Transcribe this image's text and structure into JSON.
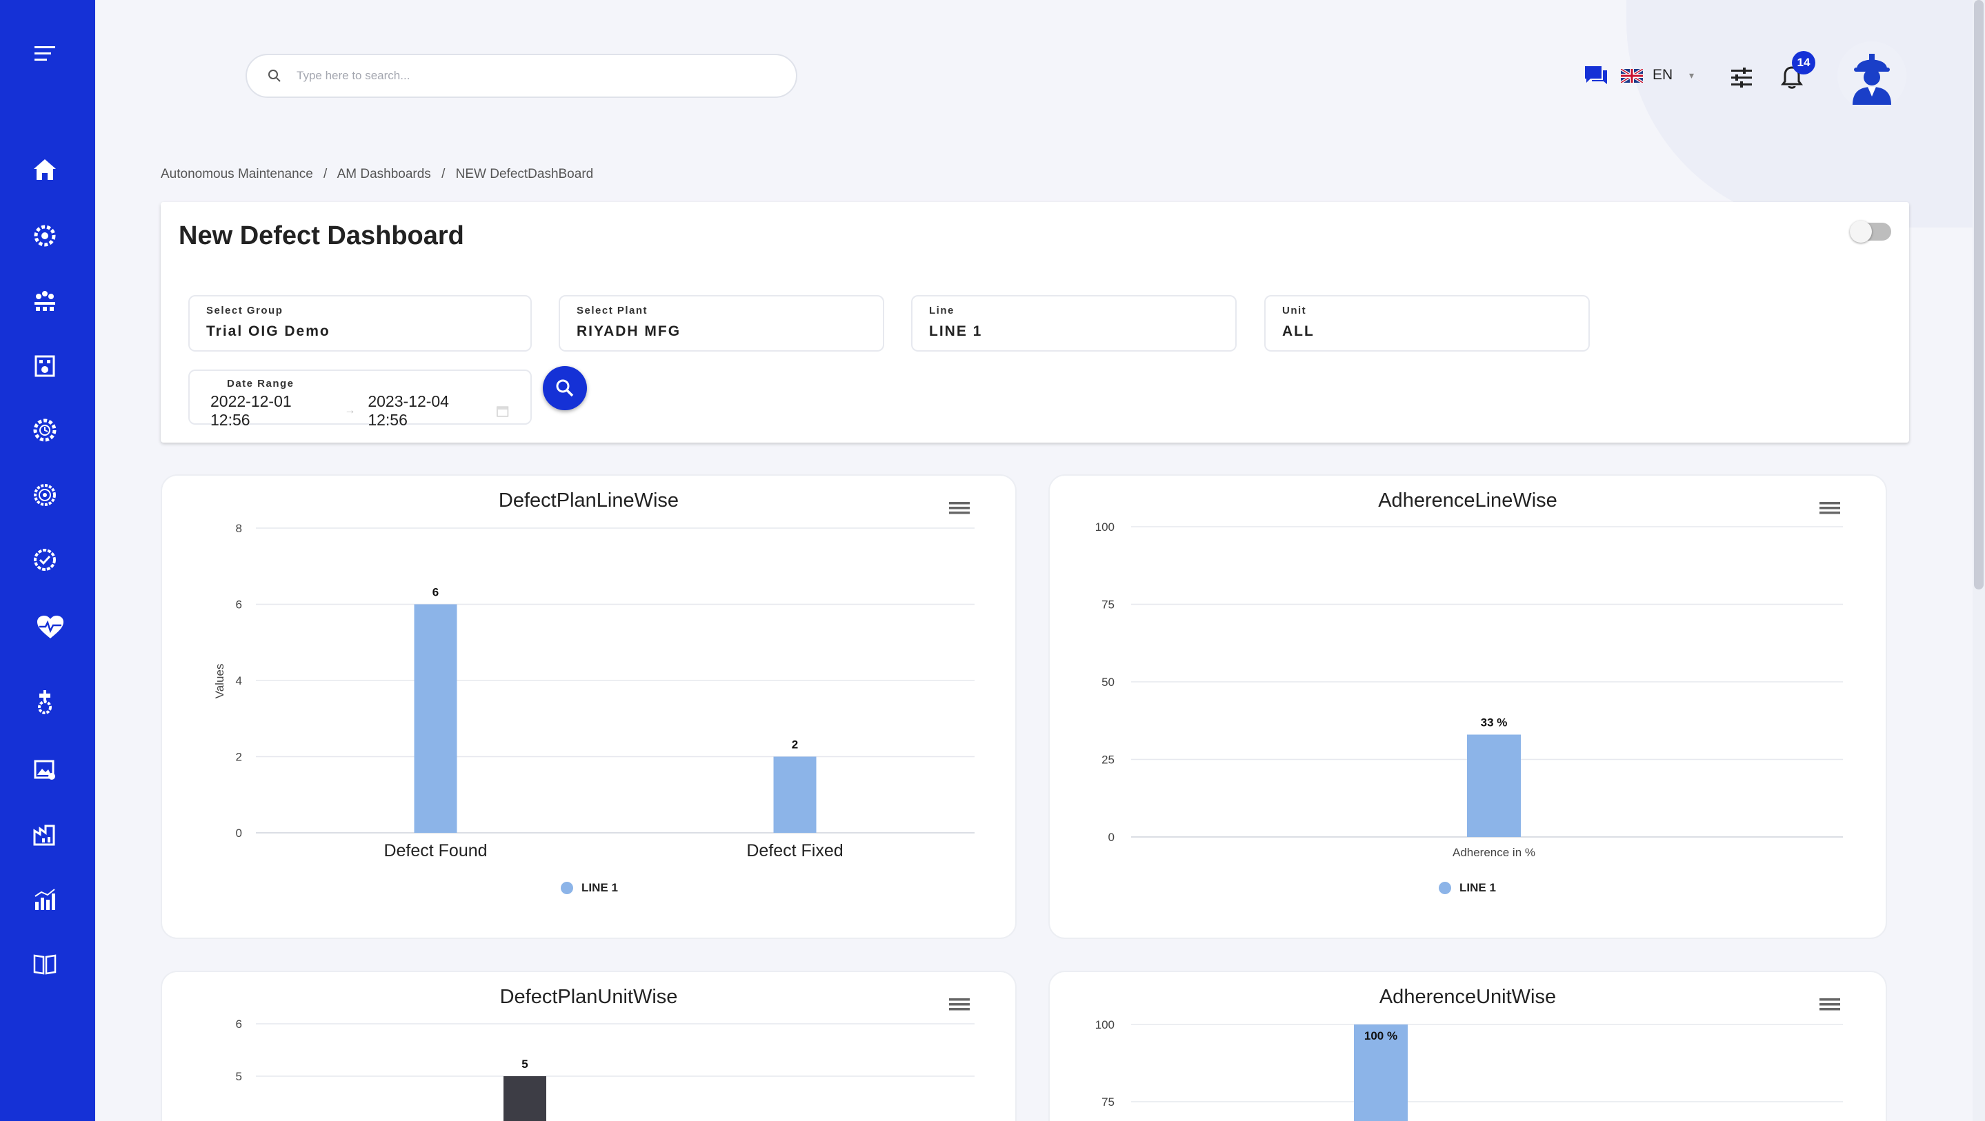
{
  "sidebar": {
    "items": [
      {
        "icon": "menu-icon"
      },
      {
        "icon": "home-icon"
      },
      {
        "icon": "gear-shield-icon"
      },
      {
        "icon": "team-icon"
      },
      {
        "icon": "factory-icon"
      },
      {
        "icon": "clock-gear-icon"
      },
      {
        "icon": "target-icon"
      },
      {
        "icon": "check-badge-icon"
      },
      {
        "icon": "heartbeat-icon"
      },
      {
        "icon": "machine-gear-icon"
      },
      {
        "icon": "report-image-icon"
      },
      {
        "icon": "industry-chart-icon"
      },
      {
        "icon": "bar-chart-icon"
      },
      {
        "icon": "book-icon"
      }
    ],
    "color": "#1531d6"
  },
  "header": {
    "search_placeholder": "Type here to search...",
    "language": "EN",
    "notification_count": "14"
  },
  "breadcrumb": [
    "Autonomous Maintenance",
    "/",
    "AM Dashboards",
    "/",
    "NEW DefectDashBoard"
  ],
  "page": {
    "title": "New Defect Dashboard",
    "toggle_on": false
  },
  "filters": {
    "group": {
      "label": "Select Group",
      "value": "Trial OIG Demo"
    },
    "plant": {
      "label": "Select Plant",
      "value": "RIYADH MFG"
    },
    "line": {
      "label": "Line",
      "value": "LINE 1"
    },
    "unit": {
      "label": "Unit",
      "value": "ALL"
    },
    "date_range": {
      "label": "Date Range",
      "start": "2022-12-01 12:56",
      "end": "2023-12-04 12:56"
    }
  },
  "charts": {
    "defect_line": {
      "title": "DefectPlanLineWise",
      "legend": "LINE 1"
    },
    "adherence_line": {
      "title": "AdherenceLineWise",
      "legend": "LINE 1"
    },
    "defect_unit": {
      "title": "DefectPlanUnitWise"
    },
    "adherence_unit": {
      "title": "AdherenceUnitWise"
    }
  },
  "chart_data": [
    {
      "type": "bar",
      "title": "DefectPlanLineWise",
      "categories": [
        "Defect Found",
        "Defect Fixed"
      ],
      "series": [
        {
          "name": "LINE 1",
          "values": [
            6,
            2
          ],
          "color": "#8cb4e8"
        }
      ],
      "ylabel": "Values",
      "ylim": [
        0,
        8
      ],
      "yticks": [
        0,
        2,
        4,
        6,
        8
      ],
      "data_labels": [
        "6",
        "2"
      ],
      "legend": "bottom-center"
    },
    {
      "type": "bar",
      "title": "AdherenceLineWise",
      "categories": [
        ""
      ],
      "xlabel": "Adherence in %",
      "series": [
        {
          "name": "LINE 1",
          "values": [
            33
          ],
          "color": "#8cb4e8"
        }
      ],
      "ylim": [
        0,
        100
      ],
      "yticks": [
        0,
        25,
        50,
        75,
        100
      ],
      "data_labels": [
        "33 %"
      ],
      "legend": "bottom-center"
    },
    {
      "type": "bar",
      "title": "DefectPlanUnitWise",
      "yticks_visible": [
        5,
        6
      ],
      "bars": [
        {
          "value": 5,
          "color": "#3d3d45"
        }
      ],
      "data_labels": [
        "5"
      ]
    },
    {
      "type": "bar",
      "title": "AdherenceUnitWise",
      "yticks_visible": [
        75,
        100
      ],
      "bars": [
        {
          "value": 100,
          "color": "#8cb4e8"
        }
      ],
      "data_labels": [
        "100 %"
      ]
    }
  ]
}
